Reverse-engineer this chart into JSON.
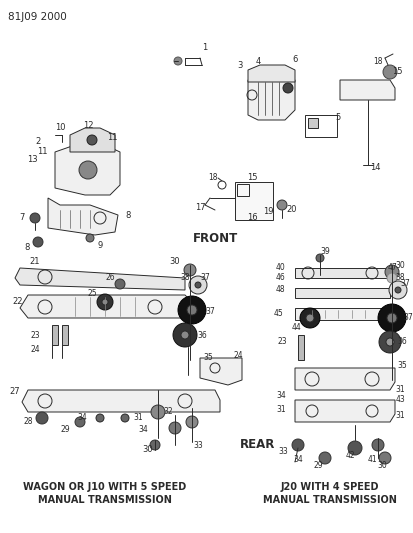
{
  "title": "81J09 2000",
  "bg_color": "#ffffff",
  "fg_color": "#2a2a2a",
  "fig_width": 4.13,
  "fig_height": 5.33,
  "dpi": 100,
  "bottom_left_label1": "WAGON OR J10 WITH 5 SPEED",
  "bottom_left_label2": "MANUAL TRANSMISSION",
  "bottom_right_label1": "J20 WITH 4 SPEED",
  "bottom_right_label2": "MANUAL TRANSMISSION",
  "front_label": "FRONT",
  "rear_label": "REAR",
  "xlim": [
    0,
    413
  ],
  "ylim": [
    0,
    533
  ]
}
